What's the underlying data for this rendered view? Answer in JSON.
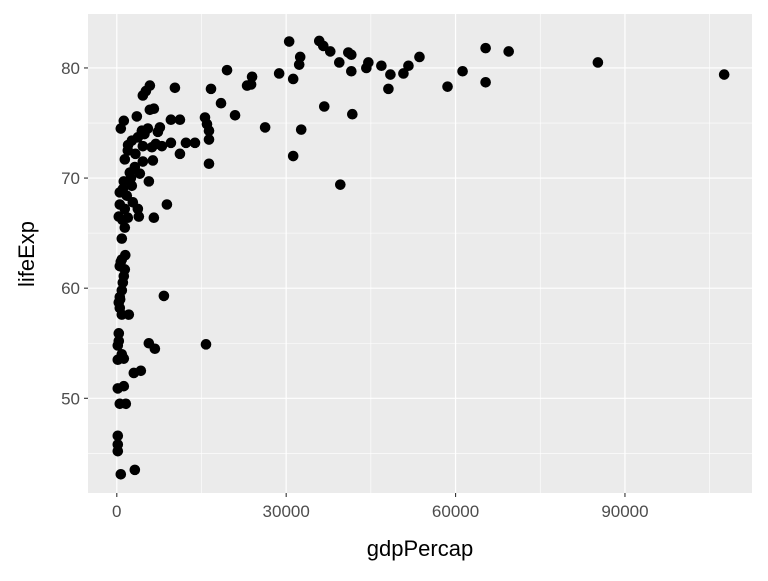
{
  "chart_data": {
    "type": "scatter",
    "title": "",
    "xlabel": "gdpPercap",
    "ylabel": "lifeExp",
    "xlim": [
      -5100,
      112500
    ],
    "ylim": [
      41.4,
      84.9
    ],
    "x_ticks": [
      0,
      30000,
      60000,
      90000
    ],
    "x_tick_labels": [
      "0",
      "30000",
      "60000",
      "90000"
    ],
    "y_ticks": [
      50,
      60,
      70,
      80
    ],
    "y_tick_labels": [
      "50",
      "60",
      "70",
      "80"
    ],
    "x_minor": [
      15000,
      45000,
      75000,
      105000
    ],
    "y_minor": [
      45,
      55,
      65,
      75
    ],
    "grid": true,
    "colors": {
      "panel": "#EBEBEB",
      "grid": "#FFFFFF",
      "point": "#000000",
      "tick_text": "#4D4D4D"
    },
    "points": [
      [
        35858,
        82.45
      ],
      [
        36568,
        82.0
      ],
      [
        37810,
        81.5
      ],
      [
        30532,
        82.4
      ],
      [
        32485,
        81.0
      ],
      [
        32308,
        80.3
      ],
      [
        41006,
        81.4
      ],
      [
        41538,
        81.2
      ],
      [
        39408,
        80.5
      ],
      [
        41538,
        79.7
      ],
      [
        44556,
        80.5
      ],
      [
        44201,
        80.0
      ],
      [
        46864,
        80.2
      ],
      [
        48462,
        79.4
      ],
      [
        50769,
        79.5
      ],
      [
        51657,
        80.2
      ],
      [
        53609,
        81.0
      ],
      [
        48107,
        78.1
      ],
      [
        58580,
        78.3
      ],
      [
        61243,
        79.7
      ],
      [
        65325,
        81.8
      ],
      [
        69408,
        81.5
      ],
      [
        65325,
        78.7
      ],
      [
        85207,
        80.5
      ],
      [
        107574,
        79.4
      ],
      [
        28757,
        79.5
      ],
      [
        31243,
        79.0
      ],
      [
        23787,
        78.5
      ],
      [
        23077,
        78.4
      ],
      [
        23964,
        79.2
      ],
      [
        19527,
        79.8
      ],
      [
        16686,
        78.1
      ],
      [
        18462,
        76.8
      ],
      [
        20946,
        75.7
      ],
      [
        26272,
        74.6
      ],
      [
        32663,
        74.4
      ],
      [
        36746,
        76.5
      ],
      [
        41716,
        75.8
      ],
      [
        31243,
        72.0
      ],
      [
        39586,
        69.4
      ],
      [
        15621,
        75.5
      ],
      [
        15976,
        74.9
      ],
      [
        16331,
        74.3
      ],
      [
        16331,
        73.5
      ],
      [
        16331,
        71.3
      ],
      [
        15799,
        54.9
      ],
      [
        13846,
        73.2
      ],
      [
        12249,
        73.2
      ],
      [
        11183,
        72.2
      ],
      [
        11183,
        75.3
      ],
      [
        9586,
        75.3
      ],
      [
        10296,
        78.2
      ],
      [
        9586,
        73.2
      ],
      [
        8876,
        67.6
      ],
      [
        8343,
        59.3
      ],
      [
        6746,
        54.5
      ],
      [
        5680,
        55.0
      ],
      [
        6568,
        66.4
      ],
      [
        4260,
        52.5
      ],
      [
        3018,
        52.3
      ],
      [
        3195,
        43.5
      ],
      [
        5858,
        78.4
      ],
      [
        5148,
        77.9
      ],
      [
        4615,
        77.5
      ],
      [
        6568,
        76.3
      ],
      [
        5858,
        76.2
      ],
      [
        3550,
        75.6
      ],
      [
        1243,
        75.2
      ],
      [
        710,
        74.5
      ],
      [
        7633,
        74.6
      ],
      [
        7278,
        74.2
      ],
      [
        5503,
        74.5
      ],
      [
        4438,
        74.3
      ],
      [
        3728,
        73.7
      ],
      [
        2663,
        73.4
      ],
      [
        1953,
        72.5
      ],
      [
        1420,
        71.7
      ],
      [
        4615,
        72.9
      ],
      [
        6213,
        72.8
      ],
      [
        7988,
        72.9
      ],
      [
        6391,
        71.6
      ],
      [
        4615,
        71.5
      ],
      [
        3195,
        71.0
      ],
      [
        2308,
        70.5
      ],
      [
        4083,
        70.4
      ],
      [
        5680,
        69.7
      ],
      [
        1243,
        69.7
      ],
      [
        1065,
        69.0
      ],
      [
        2663,
        69.3
      ],
      [
        1775,
        68.4
      ],
      [
        533,
        68.7
      ],
      [
        2840,
        67.8
      ],
      [
        533,
        67.6
      ],
      [
        1420,
        67.2
      ],
      [
        3728,
        67.2
      ],
      [
        355,
        66.5
      ],
      [
        1953,
        66.4
      ],
      [
        3905,
        66.5
      ],
      [
        1420,
        65.5
      ],
      [
        888,
        64.5
      ],
      [
        888,
        62.6
      ],
      [
        710,
        62.4
      ],
      [
        533,
        62.0
      ],
      [
        1420,
        61.7
      ],
      [
        1243,
        61.1
      ],
      [
        1065,
        60.5
      ],
      [
        888,
        59.8
      ],
      [
        533,
        59.2
      ],
      [
        355,
        58.7
      ],
      [
        533,
        58.2
      ],
      [
        888,
        57.6
      ],
      [
        2130,
        57.6
      ],
      [
        355,
        55.9
      ],
      [
        355,
        55.2
      ],
      [
        178,
        54.8
      ],
      [
        888,
        54.0
      ],
      [
        178,
        53.5
      ],
      [
        1243,
        53.6
      ],
      [
        178,
        50.9
      ],
      [
        1243,
        51.1
      ],
      [
        533,
        49.5
      ],
      [
        1598,
        49.5
      ],
      [
        178,
        46.6
      ],
      [
        178,
        45.8
      ],
      [
        178,
        45.2
      ],
      [
        710,
        43.1
      ],
      [
        2500,
        70.0
      ],
      [
        3300,
        72.2
      ],
      [
        4900,
        74.0
      ],
      [
        2000,
        73.0
      ],
      [
        6900,
        73.1
      ],
      [
        1000,
        66.2
      ],
      [
        600,
        59.0
      ],
      [
        1500,
        63.0
      ]
    ]
  }
}
